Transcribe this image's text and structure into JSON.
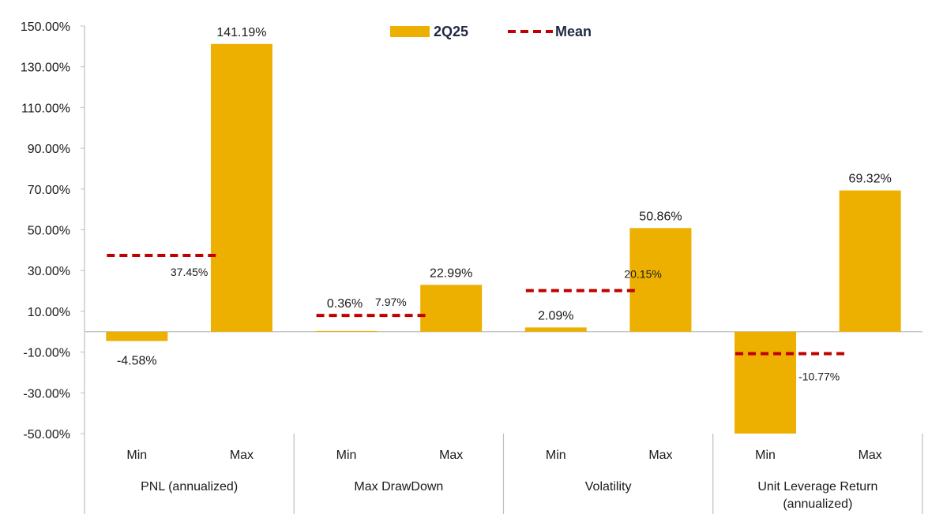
{
  "chart_data": {
    "type": "bar",
    "title": "",
    "xlabel": "",
    "ylabel": "",
    "ylim": [
      -50,
      150
    ],
    "y_ticks": [
      150,
      130,
      110,
      90,
      70,
      50,
      30,
      10,
      -10,
      -30,
      -50
    ],
    "y_tick_labels": [
      "150.00%",
      "130.00%",
      "110.00%",
      "90.00%",
      "70.00%",
      "50.00%",
      "30.00%",
      "10.00%",
      "-10.00%",
      "-30.00%",
      "-50.00%"
    ],
    "legend": {
      "placement": "top-center",
      "bar_label": "2Q25",
      "mean_label": "Mean"
    },
    "colors": {
      "bar": "#EDB000",
      "mean": "#C00000",
      "axis": "#BFBFBF"
    },
    "groups": [
      {
        "name_lines": [
          "PNL (annualized)"
        ],
        "bars": [
          {
            "sub": "Min",
            "value": -4.58,
            "label": "-4.58%"
          },
          {
            "sub": "Max",
            "value": 141.19,
            "label": "141.19%"
          }
        ],
        "mean": {
          "value": 37.45,
          "label": "37.45%"
        }
      },
      {
        "name_lines": [
          "Max DrawDown"
        ],
        "bars": [
          {
            "sub": "Min",
            "value": 0.36,
            "label": "0.36%"
          },
          {
            "sub": "Max",
            "value": 22.99,
            "label": "22.99%"
          }
        ],
        "mean": {
          "value": 7.97,
          "label": "7.97%"
        }
      },
      {
        "name_lines": [
          "Volatility"
        ],
        "bars": [
          {
            "sub": "Min",
            "value": 2.09,
            "label": "2.09%"
          },
          {
            "sub": "Max",
            "value": 50.86,
            "label": "50.86%"
          }
        ],
        "mean": {
          "value": 20.15,
          "label": "20.15%"
        }
      },
      {
        "name_lines": [
          "Unit Leverage Return",
          "(annualized)"
        ],
        "bars": [
          {
            "sub": "Min",
            "value": -50.0,
            "label": ""
          },
          {
            "sub": "Max",
            "value": 69.32,
            "label": "69.32%"
          }
        ],
        "mean": {
          "value": -10.77,
          "label": "-10.77%"
        }
      }
    ]
  }
}
